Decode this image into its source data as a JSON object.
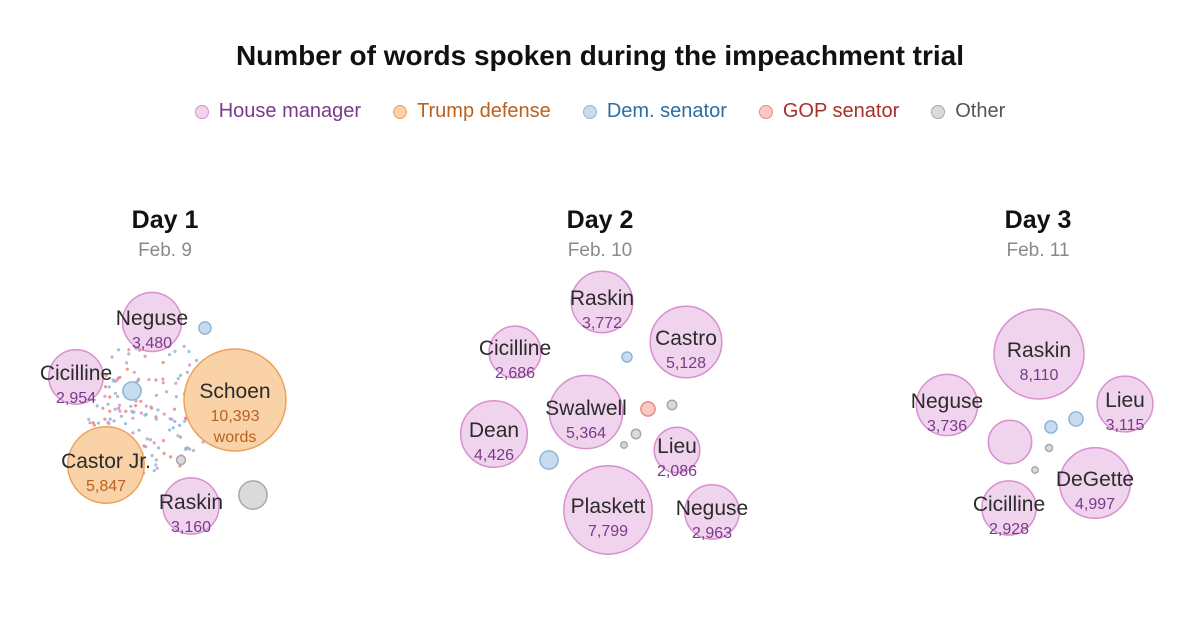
{
  "title": "Number of words spoken during the impeachment trial",
  "legend": [
    {
      "key": "house",
      "label": "House manager",
      "text_color": "#7a3a8c",
      "fill": "#f0d3ec",
      "stroke": "#d98fd0"
    },
    {
      "key": "trump",
      "label": "Trump defense",
      "text_color": "#b8621f",
      "fill": "#f9d2a8",
      "stroke": "#eea05a"
    },
    {
      "key": "dem",
      "label": "Dem. senator",
      "text_color": "#2e6d9e",
      "fill": "#c7dcef",
      "stroke": "#8fb6d8"
    },
    {
      "key": "gop",
      "label": "GOP senator",
      "text_color": "#a8302b",
      "fill": "#f7c9c5",
      "stroke": "#e58a83"
    },
    {
      "key": "other",
      "label": "Other",
      "text_color": "#555555",
      "fill": "#dadada",
      "stroke": "#a8a8a8"
    }
  ],
  "chart_data": {
    "type": "bubble",
    "title": "Number of words spoken during the impeachment trial",
    "value_unit": "words",
    "days": [
      {
        "day": "Day 1",
        "date": "Feb. 9",
        "bubbles": [
          {
            "name": "Schoen",
            "category": "trump",
            "value": 10393,
            "value_label": "10,393",
            "unit_label": "words"
          },
          {
            "name": "Castor Jr.",
            "category": "trump",
            "value": 5847,
            "value_label": "5,847"
          },
          {
            "name": "Neguse",
            "category": "house",
            "value": 3480,
            "value_label": "3,480"
          },
          {
            "name": "Raskin",
            "category": "house",
            "value": 3160,
            "value_label": "3,160"
          },
          {
            "name": "Cicilline",
            "category": "house",
            "value": 2954,
            "value_label": "2,954"
          },
          {
            "category": "other",
            "value": 800
          },
          {
            "category": "dem",
            "value": 330
          },
          {
            "category": "dem",
            "value": 150
          },
          {
            "category": "other",
            "value": 80
          }
        ]
      },
      {
        "day": "Day 2",
        "date": "Feb. 10",
        "bubbles": [
          {
            "name": "Plaskett",
            "category": "house",
            "value": 7799,
            "value_label": "7,799"
          },
          {
            "name": "Swalwell",
            "category": "house",
            "value": 5364,
            "value_label": "5,364"
          },
          {
            "name": "Castro",
            "category": "house",
            "value": 5128,
            "value_label": "5,128"
          },
          {
            "name": "Dean",
            "category": "house",
            "value": 4426,
            "value_label": "4,426"
          },
          {
            "name": "Raskin",
            "category": "house",
            "value": 3772,
            "value_label": "3,772"
          },
          {
            "name": "Neguse",
            "category": "house",
            "value": 2963,
            "value_label": "2,963"
          },
          {
            "name": "Cicilline",
            "category": "house",
            "value": 2686,
            "value_label": "2,686"
          },
          {
            "name": "Lieu",
            "category": "house",
            "value": 2086,
            "value_label": "2,086"
          },
          {
            "category": "dem",
            "value": 330
          },
          {
            "category": "gop",
            "value": 200
          },
          {
            "category": "dem",
            "value": 100
          },
          {
            "category": "other",
            "value": 90
          },
          {
            "category": "other",
            "value": 90
          },
          {
            "category": "other",
            "value": 40
          }
        ]
      },
      {
        "day": "Day 3",
        "date": "Feb. 11",
        "bubbles": [
          {
            "name": "Raskin",
            "category": "house",
            "value": 8110,
            "value_label": "8,110"
          },
          {
            "name": "DeGette",
            "category": "house",
            "value": 4997,
            "value_label": "4,997"
          },
          {
            "name": "Neguse",
            "category": "house",
            "value": 3736,
            "value_label": "3,736"
          },
          {
            "name": "Lieu",
            "category": "house",
            "value": 3115,
            "value_label": "3,115"
          },
          {
            "name": "Cicilline",
            "category": "house",
            "value": 2928,
            "value_label": "2,928"
          },
          {
            "category": "house",
            "value": 1880
          },
          {
            "category": "dem",
            "value": 200
          },
          {
            "category": "dem",
            "value": 150
          },
          {
            "category": "other",
            "value": 50
          },
          {
            "category": "other",
            "value": 40
          }
        ]
      }
    ]
  }
}
